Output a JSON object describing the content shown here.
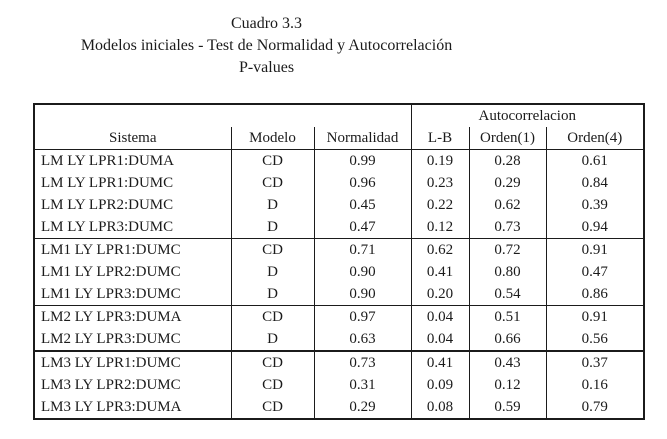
{
  "title": {
    "line1": "Cuadro 3.3",
    "line2": "Modelos iniciales - Test de Normalidad y Autocorrelación",
    "line3": "P-values"
  },
  "table": {
    "group_header": "Autocorrelacion",
    "columns": [
      "Sistema",
      "Modelo",
      "Normalidad",
      "L-B",
      "Orden(1)",
      "Orden(4)"
    ],
    "groups": [
      {
        "rows": [
          [
            "LM LY LPR1:DUMA",
            "CD",
            "0.99",
            "0.19",
            "0.28",
            "0.61"
          ],
          [
            "LM LY LPR1:DUMC",
            "CD",
            "0.96",
            "0.23",
            "0.29",
            "0.84"
          ],
          [
            "LM LY LPR2:DUMC",
            "D",
            "0.45",
            "0.22",
            "0.62",
            "0.39"
          ],
          [
            "LM LY LPR3:DUMC",
            "D",
            "0.47",
            "0.12",
            "0.73",
            "0.94"
          ]
        ]
      },
      {
        "rows": [
          [
            "LM1 LY LPR1:DUMC",
            "CD",
            "0.71",
            "0.62",
            "0.72",
            "0.91"
          ],
          [
            "LM1 LY LPR2:DUMC",
            "D",
            "0.90",
            "0.41",
            "0.80",
            "0.47"
          ],
          [
            "LM1 LY LPR3:DUMC",
            "D",
            "0.90",
            "0.20",
            "0.54",
            "0.86"
          ]
        ]
      },
      {
        "rows": [
          [
            "LM2 LY LPR3:DUMA",
            "CD",
            "0.97",
            "0.04",
            "0.51",
            "0.91"
          ],
          [
            "LM2 LY LPR3:DUMC",
            "D",
            "0.63",
            "0.04",
            "0.66",
            "0.56"
          ]
        ]
      },
      {
        "rows": [
          [
            "LM3 LY LPR1:DUMC",
            "CD",
            "0.73",
            "0.41",
            "0.43",
            "0.37"
          ],
          [
            "LM3 LY LPR2:DUMC",
            "CD",
            "0.31",
            "0.09",
            "0.12",
            "0.16"
          ],
          [
            "LM3 LY LPR3:DUMA",
            "CD",
            "0.29",
            "0.08",
            "0.59",
            "0.79"
          ]
        ]
      }
    ]
  },
  "colors": {
    "text": "#1b1b1b",
    "border": "#1b1b1b",
    "background": "#ffffff"
  }
}
